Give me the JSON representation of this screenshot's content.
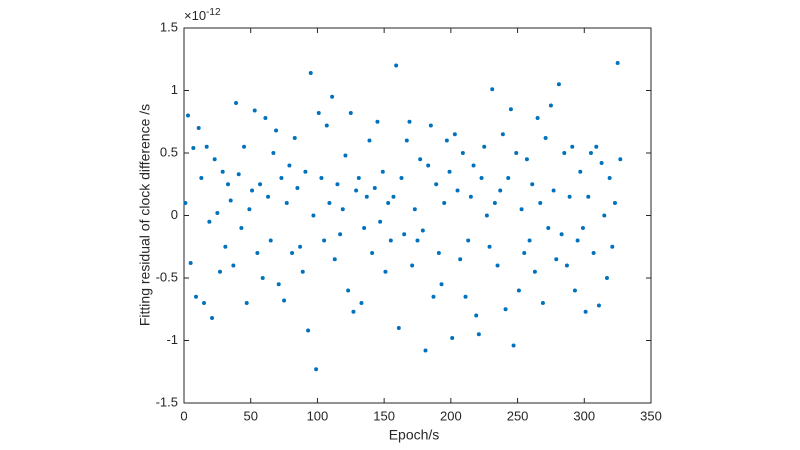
{
  "chart_data": {
    "type": "scatter",
    "x_label": "Epoch/s",
    "y_label": "Fitting residual of clock difference /s",
    "y_exponent_base": "×10",
    "y_exponent_power": "-12",
    "xlim": [
      0,
      350
    ],
    "xticks": [
      0,
      50,
      100,
      150,
      200,
      250,
      300,
      350
    ],
    "ylim": [
      -1.5,
      1.5
    ],
    "yticks": [
      -1.5,
      -1,
      -0.5,
      0,
      0.5,
      1,
      1.5
    ],
    "color": "#0072bd",
    "x": [
      1,
      3,
      5,
      7,
      9,
      11,
      13,
      15,
      17,
      19,
      21,
      23,
      25,
      27,
      29,
      31,
      33,
      35,
      37,
      39,
      41,
      43,
      45,
      47,
      49,
      51,
      53,
      55,
      57,
      59,
      61,
      63,
      65,
      67,
      69,
      71,
      73,
      75,
      77,
      79,
      81,
      83,
      85,
      87,
      89,
      91,
      93,
      95,
      97,
      99,
      101,
      103,
      105,
      107,
      109,
      111,
      113,
      115,
      117,
      119,
      121,
      123,
      125,
      127,
      129,
      131,
      133,
      135,
      137,
      139,
      141,
      143,
      145,
      147,
      149,
      151,
      153,
      155,
      157,
      159,
      161,
      163,
      165,
      167,
      169,
      171,
      173,
      175,
      177,
      179,
      181,
      183,
      185,
      187,
      189,
      191,
      193,
      195,
      197,
      199,
      201,
      203,
      205,
      207,
      209,
      211,
      213,
      215,
      217,
      219,
      221,
      223,
      225,
      227,
      229,
      231,
      233,
      235,
      237,
      239,
      241,
      243,
      245,
      247,
      249,
      251,
      253,
      255,
      257,
      259,
      261,
      263,
      265,
      267,
      269,
      271,
      273,
      275,
      277,
      279,
      281,
      283,
      285,
      287,
      289,
      291,
      293,
      295,
      297,
      299,
      301,
      303,
      305,
      307,
      309,
      311,
      313,
      315,
      317,
      319,
      321,
      323,
      325,
      327
    ],
    "values": [
      0.1,
      0.8,
      -0.38,
      0.54,
      -0.65,
      0.7,
      0.3,
      -0.7,
      0.55,
      -0.05,
      -0.82,
      0.45,
      0.02,
      -0.45,
      0.35,
      -0.25,
      0.25,
      0.12,
      -0.4,
      0.9,
      0.33,
      -0.1,
      0.55,
      -0.7,
      0.05,
      0.2,
      0.84,
      -0.3,
      0.25,
      -0.5,
      0.78,
      0.15,
      -0.2,
      0.5,
      0.68,
      -0.55,
      0.3,
      -0.68,
      0.1,
      0.4,
      -0.3,
      0.62,
      0.22,
      -0.25,
      -0.45,
      0.35,
      -0.92,
      1.14,
      0.0,
      -1.23,
      0.82,
      0.3,
      -0.2,
      0.72,
      0.1,
      0.95,
      -0.35,
      0.25,
      -0.15,
      0.05,
      0.48,
      -0.6,
      0.82,
      -0.77,
      0.2,
      0.3,
      -0.7,
      -0.1,
      0.15,
      0.6,
      -0.3,
      0.22,
      0.75,
      -0.05,
      0.35,
      -0.45,
      0.1,
      -0.2,
      0.15,
      1.2,
      -0.9,
      0.3,
      -0.15,
      0.6,
      0.75,
      -0.4,
      0.05,
      -0.2,
      0.45,
      -0.12,
      -1.08,
      0.4,
      0.72,
      -0.65,
      0.25,
      -0.3,
      -0.55,
      0.1,
      0.6,
      0.35,
      -0.98,
      0.65,
      0.2,
      -0.35,
      0.5,
      -0.65,
      -0.2,
      0.15,
      0.4,
      -0.8,
      -0.95,
      0.3,
      0.55,
      0.0,
      -0.25,
      1.01,
      0.1,
      -0.4,
      0.2,
      0.65,
      -0.75,
      0.3,
      0.85,
      -1.04,
      0.5,
      -0.6,
      0.05,
      -0.3,
      0.45,
      -0.2,
      0.25,
      -0.45,
      0.78,
      0.1,
      -0.7,
      0.62,
      -0.1,
      0.88,
      0.2,
      -0.35,
      1.05,
      -0.15,
      0.5,
      -0.4,
      0.15,
      0.55,
      -0.6,
      -0.2,
      0.35,
      -0.1,
      -0.77,
      0.15,
      0.5,
      -0.3,
      0.55,
      -0.72,
      0.42,
      0.0,
      -0.5,
      0.3,
      -0.25,
      0.1,
      1.22,
      0.45
    ]
  }
}
